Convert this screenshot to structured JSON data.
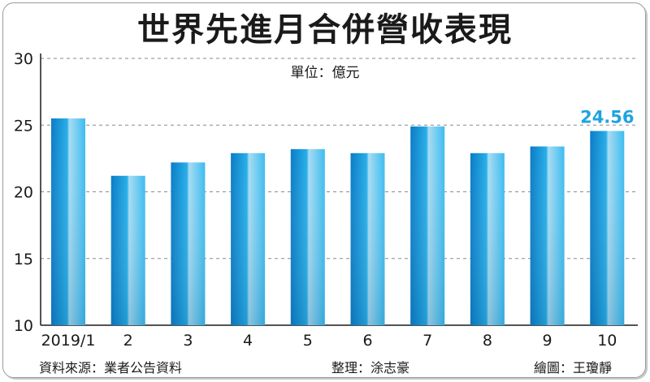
{
  "title": "世界先進月合併營收表現",
  "unit_label": "單位：億元",
  "footer": {
    "source": "資料來源：業者公告資料",
    "editor": "整理：涂志豪",
    "artist": "繪圖：王瓊靜"
  },
  "colors": {
    "bar_dark": "#0b7cc6",
    "bar_mid": "#27aee8",
    "bar_light": "#a8dcf2",
    "callout": "#1fa3e0"
  },
  "chart_data": {
    "type": "bar",
    "title": "世界先進月合併營收表現",
    "unit": "單位：億元",
    "categories": [
      "2019/1",
      "2",
      "3",
      "4",
      "5",
      "6",
      "7",
      "8",
      "9",
      "10"
    ],
    "values": [
      25.5,
      21.2,
      22.2,
      22.9,
      23.2,
      22.9,
      24.9,
      22.9,
      23.4,
      24.56
    ],
    "ylim": [
      10,
      30
    ],
    "yticks": [
      10,
      15,
      20,
      25,
      30
    ],
    "grid": true,
    "annotation": {
      "category": "10",
      "text": "24.56"
    }
  }
}
